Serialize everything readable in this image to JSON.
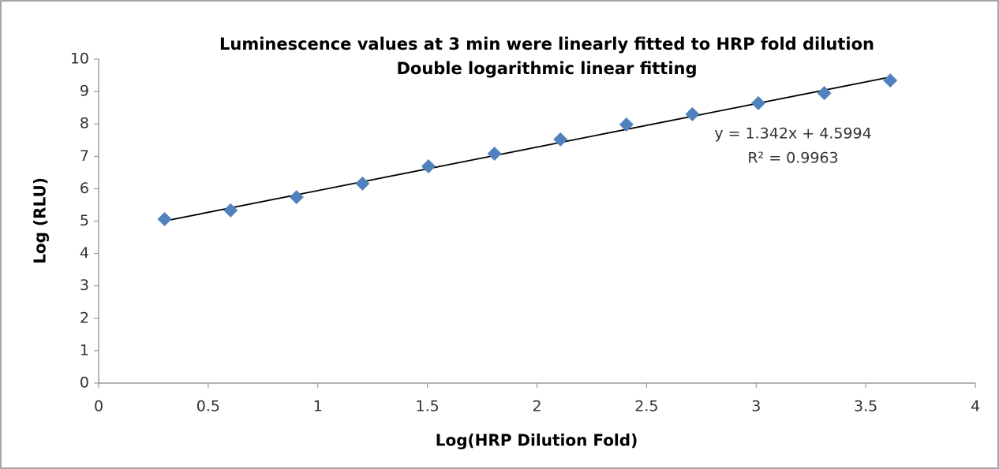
{
  "chart_data": {
    "type": "scatter",
    "title": "Luminescence values at 3 min were linearly fitted to HRP fold dilution",
    "subtitle": "Double logarithmic linear fitting",
    "xlabel": "Log(HRP Dilution Fold)",
    "ylabel": "Log (RLU)",
    "x": [
      0.301,
      0.602,
      0.903,
      1.204,
      1.505,
      1.806,
      2.107,
      2.408,
      2.709,
      3.01,
      3.311,
      3.612
    ],
    "series": [
      {
        "name": "Log (RLU)",
        "color": "#4f81bd",
        "values": [
          5.06,
          5.33,
          5.74,
          6.16,
          6.69,
          7.08,
          7.52,
          7.98,
          8.3,
          8.64,
          8.95,
          9.34
        ]
      }
    ],
    "trendline": {
      "slope": 1.342,
      "intercept": 4.5994,
      "color": "#000000",
      "equation": "y = 1.342x + 4.5994",
      "r2": "R² = 0.9963"
    },
    "xlim": [
      0,
      4
    ],
    "xticks": [
      0,
      0.5,
      1,
      1.5,
      2,
      2.5,
      3,
      3.5,
      4
    ],
    "ylim": [
      0,
      10
    ],
    "yticks": [
      0,
      1,
      2,
      3,
      4,
      5,
      6,
      7,
      8,
      9,
      10
    ],
    "grid": false
  }
}
